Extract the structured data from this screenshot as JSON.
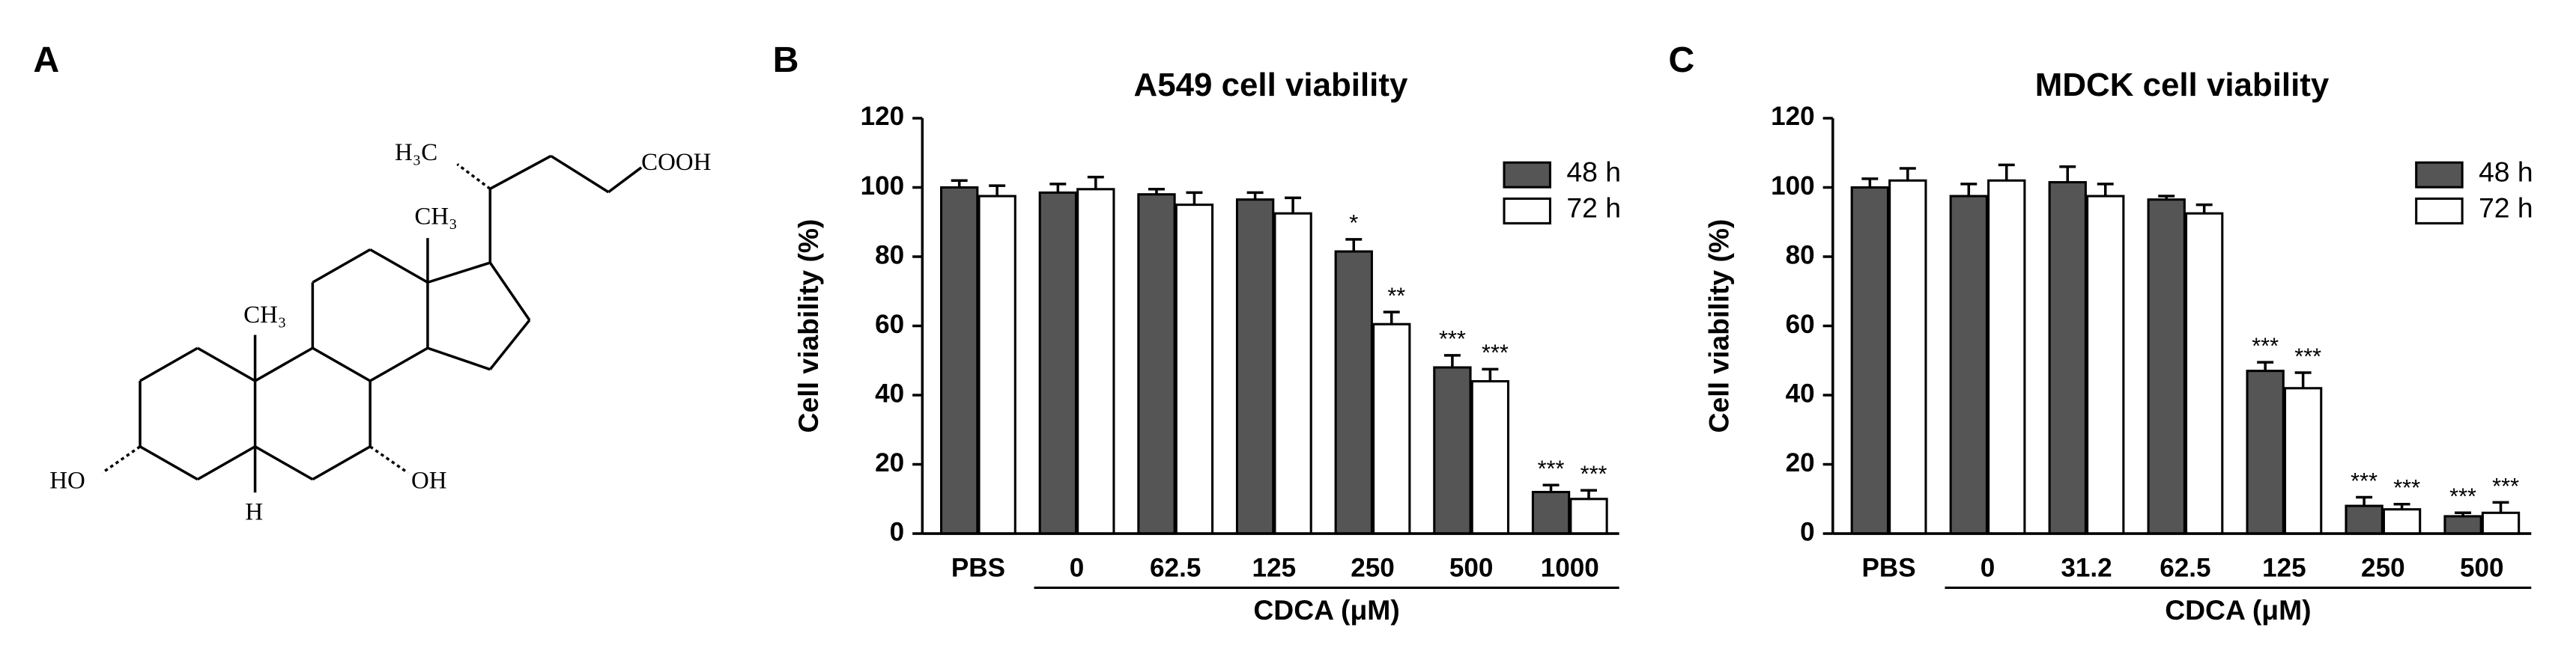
{
  "panel_labels": [
    "A",
    "B",
    "C"
  ],
  "structure": {
    "labels": [
      "H₃C",
      "COOH",
      "CH₃",
      "CH₃",
      "HO",
      "OH",
      "H"
    ]
  },
  "chart_data": [
    {
      "type": "bar",
      "title": "A549 cell viability",
      "y_label": "Cell viability (%)",
      "x_label": "CDCA (μM)",
      "categories": [
        "PBS",
        "0",
        "62.5",
        "125",
        "250",
        "500",
        "1000"
      ],
      "series": [
        {
          "name": "48 h",
          "color": "#555555",
          "values": [
            100,
            98.5,
            98,
            96.5,
            81.5,
            48,
            12
          ],
          "errors": [
            2,
            2.5,
            1.5,
            2,
            3.5,
            3.5,
            2
          ],
          "annotations": [
            null,
            null,
            null,
            null,
            "*",
            "***",
            "***"
          ]
        },
        {
          "name": "72 h",
          "color": "#ffffff",
          "values": [
            97.5,
            99.5,
            95,
            92.5,
            60.5,
            44,
            10
          ],
          "errors": [
            3,
            3.5,
            3.5,
            4.5,
            3.5,
            3.5,
            2.5
          ],
          "annotations": [
            null,
            null,
            null,
            null,
            "**",
            "***",
            "***"
          ]
        }
      ],
      "ylim": [
        0,
        120
      ],
      "yticks": [
        0,
        20,
        40,
        60,
        80,
        100,
        120
      ],
      "legend": "top-right"
    },
    {
      "type": "bar",
      "title": "MDCK cell viability",
      "y_label": "Cell viability (%)",
      "x_label": "CDCA (μM)",
      "categories": [
        "PBS",
        "0",
        "31.2",
        "62.5",
        "125",
        "250",
        "500"
      ],
      "series": [
        {
          "name": "48 h",
          "color": "#555555",
          "values": [
            100,
            97.5,
            101.5,
            96.5,
            47,
            8,
            5
          ],
          "errors": [
            2.5,
            3.5,
            4.5,
            1,
            2.5,
            2.5,
            1
          ],
          "annotations": [
            null,
            null,
            null,
            null,
            "***",
            "***",
            "***"
          ]
        },
        {
          "name": "72 h",
          "color": "#ffffff",
          "values": [
            102,
            102,
            97.5,
            92.5,
            42,
            7,
            6
          ],
          "errors": [
            3.5,
            4.5,
            3.5,
            2.5,
            4.5,
            1.5,
            3
          ],
          "annotations": [
            null,
            null,
            null,
            null,
            "***",
            "***",
            "***"
          ]
        }
      ],
      "ylim": [
        0,
        120
      ],
      "yticks": [
        0,
        20,
        40,
        60,
        80,
        100,
        120
      ],
      "legend": "top-right"
    }
  ]
}
